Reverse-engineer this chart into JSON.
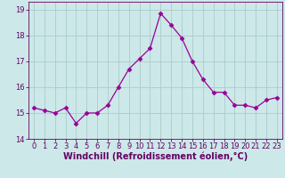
{
  "x": [
    0,
    1,
    2,
    3,
    4,
    5,
    6,
    7,
    8,
    9,
    10,
    11,
    12,
    13,
    14,
    15,
    16,
    17,
    18,
    19,
    20,
    21,
    22,
    23
  ],
  "y": [
    15.2,
    15.1,
    15.0,
    15.2,
    14.6,
    15.0,
    15.0,
    15.3,
    16.0,
    16.7,
    17.1,
    17.5,
    18.85,
    18.4,
    17.9,
    17.0,
    16.3,
    15.8,
    15.8,
    15.3,
    15.3,
    15.2,
    15.5,
    15.6
  ],
  "line_color": "#990099",
  "marker": "D",
  "marker_size": 2.5,
  "bg_color": "#cce8e8",
  "grid_color": "#aacccc",
  "xlabel": "Windchill (Refroidissement éolien,°C)",
  "ylabel": "",
  "ylim": [
    14,
    19.3
  ],
  "yticks": [
    14,
    15,
    16,
    17,
    18,
    19
  ],
  "xlim": [
    -0.5,
    23.5
  ],
  "xticks": [
    0,
    1,
    2,
    3,
    4,
    5,
    6,
    7,
    8,
    9,
    10,
    11,
    12,
    13,
    14,
    15,
    16,
    17,
    18,
    19,
    20,
    21,
    22,
    23
  ],
  "tick_label_fontsize": 6,
  "xlabel_fontsize": 7,
  "tick_color": "#660066",
  "label_color": "#660066"
}
